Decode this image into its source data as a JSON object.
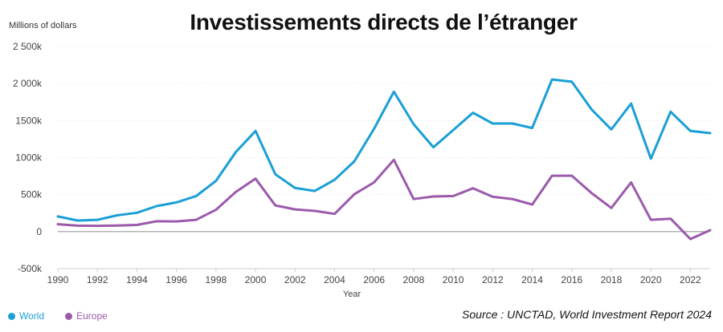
{
  "chart_data": {
    "type": "line",
    "title": "Investissements directs de l’étranger",
    "ylabel": "Millions of dollars",
    "xlabel": "Year",
    "ylim": [
      -500000,
      2500000
    ],
    "xlim": [
      1990,
      2023
    ],
    "yticks": [
      {
        "value": 2500000,
        "label": "2 500k"
      },
      {
        "value": 2000000,
        "label": "2 000k"
      },
      {
        "value": 1500000,
        "label": "1500k"
      },
      {
        "value": 1000000,
        "label": "1000k"
      },
      {
        "value": 500000,
        "label": "500k"
      },
      {
        "value": 0,
        "label": "0"
      },
      {
        "value": -500000,
        "label": "-500k"
      }
    ],
    "xticks": [
      1990,
      1992,
      1994,
      1996,
      1998,
      2000,
      2002,
      2004,
      2006,
      2008,
      2010,
      2012,
      2014,
      2016,
      2018,
      2020,
      2022
    ],
    "grid": true,
    "legend_position": "bottom-left",
    "x": [
      1990,
      1991,
      1992,
      1993,
      1994,
      1995,
      1996,
      1997,
      1998,
      1999,
      2000,
      2001,
      2002,
      2003,
      2004,
      2005,
      2006,
      2007,
      2008,
      2009,
      2010,
      2011,
      2012,
      2013,
      2014,
      2015,
      2016,
      2017,
      2018,
      2019,
      2020,
      2021,
      2022,
      2023
    ],
    "series": [
      {
        "name": "World",
        "color": "#1a9fd6",
        "values": [
          205000,
          150000,
          160000,
          220000,
          255000,
          345000,
          395000,
          480000,
          685000,
          1075000,
          1360000,
          775000,
          590000,
          550000,
          700000,
          950000,
          1390000,
          1890000,
          1450000,
          1140000,
          1370000,
          1605000,
          1460000,
          1460000,
          1400000,
          2055000,
          2025000,
          1650000,
          1380000,
          1730000,
          985000,
          1620000,
          1360000,
          1330000
        ]
      },
      {
        "name": "Europe",
        "color": "#9b5aab",
        "values": [
          100000,
          80000,
          78000,
          82000,
          90000,
          140000,
          138000,
          160000,
          295000,
          535000,
          715000,
          355000,
          300000,
          280000,
          240000,
          505000,
          665000,
          970000,
          440000,
          475000,
          480000,
          585000,
          470000,
          440000,
          365000,
          755000,
          755000,
          520000,
          320000,
          665000,
          160000,
          175000,
          -100000,
          20000
        ]
      }
    ]
  },
  "legend": {
    "world_label": "World",
    "europe_label": "Europe"
  },
  "source_text": "Source : UNCTAD, World Investment Report 2024"
}
